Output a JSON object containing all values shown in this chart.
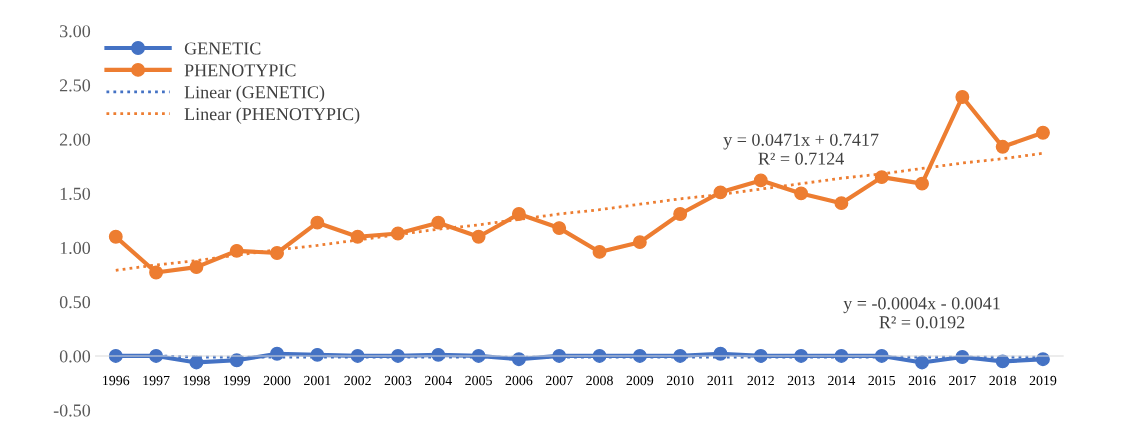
{
  "chart_data": {
    "type": "line",
    "categories": [
      "1996",
      "1997",
      "1998",
      "1999",
      "2000",
      "2001",
      "2002",
      "2003",
      "2004",
      "2005",
      "2006",
      "2007",
      "2008",
      "2009",
      "2010",
      "2011",
      "2012",
      "2013",
      "2014",
      "2015",
      "2016",
      "2017",
      "2018",
      "2019"
    ],
    "series": [
      {
        "name": "GENETIC",
        "color": "#4472c4",
        "marker": "circle",
        "line_style": "solid",
        "values": [
          0.0,
          0.0,
          -0.06,
          -0.04,
          0.02,
          0.01,
          0.0,
          0.0,
          0.01,
          0.0,
          -0.03,
          0.0,
          0.0,
          0.0,
          0.0,
          0.02,
          0.0,
          0.0,
          0.0,
          0.0,
          -0.06,
          -0.01,
          -0.05,
          -0.03
        ]
      },
      {
        "name": "PHENOTYPIC",
        "color": "#ed7d31",
        "marker": "circle",
        "line_style": "solid",
        "values": [
          1.1,
          0.77,
          0.82,
          0.97,
          0.95,
          1.23,
          1.1,
          1.13,
          1.23,
          1.1,
          1.31,
          1.18,
          0.96,
          1.05,
          1.31,
          1.51,
          1.62,
          1.5,
          1.41,
          1.65,
          1.59,
          2.39,
          1.93,
          2.06
        ]
      },
      {
        "name": "Linear (GENETIC)",
        "color": "#4472c4",
        "marker": "none",
        "line_style": "dotted",
        "values": [
          0.0,
          0.0,
          -0.01,
          -0.01,
          -0.01,
          -0.01,
          -0.01,
          -0.01,
          -0.01,
          -0.01,
          -0.01,
          -0.01,
          -0.01,
          -0.01,
          -0.01,
          -0.01,
          -0.01,
          -0.01,
          -0.01,
          -0.01,
          -0.01,
          -0.01,
          -0.01,
          -0.01
        ]
      },
      {
        "name": "Linear (PHENOTYPIC)",
        "color": "#ed7d31",
        "marker": "none",
        "line_style": "dotted",
        "values": [
          0.79,
          0.84,
          0.88,
          0.93,
          0.98,
          1.02,
          1.07,
          1.12,
          1.17,
          1.21,
          1.26,
          1.31,
          1.35,
          1.4,
          1.45,
          1.49,
          1.54,
          1.59,
          1.64,
          1.68,
          1.73,
          1.78,
          1.82,
          1.87
        ]
      }
    ],
    "ylim": [
      -0.5,
      3.0
    ],
    "yticks": [
      {
        "value": -0.5,
        "label": "-0.50"
      },
      {
        "value": 0,
        "label": "0.00"
      },
      {
        "value": 0.5,
        "label": "0.50"
      },
      {
        "value": 1.0,
        "label": "1.00"
      },
      {
        "value": 1.5,
        "label": "1.50"
      },
      {
        "value": 2.0,
        "label": "2.00"
      },
      {
        "value": 2.5,
        "label": "2.50"
      },
      {
        "value": 3.0,
        "label": "3.00"
      }
    ],
    "annotations": [
      {
        "text": "y = 0.0471x + 0.7417\nR² = 0.7124",
        "x": "2013",
        "y": 1.5
      },
      {
        "text": "y = -0.0004x - 0.0041\nR² = 0.0192",
        "x": "2016",
        "y": -0.01
      }
    ],
    "grid": false,
    "legend": "top left"
  }
}
